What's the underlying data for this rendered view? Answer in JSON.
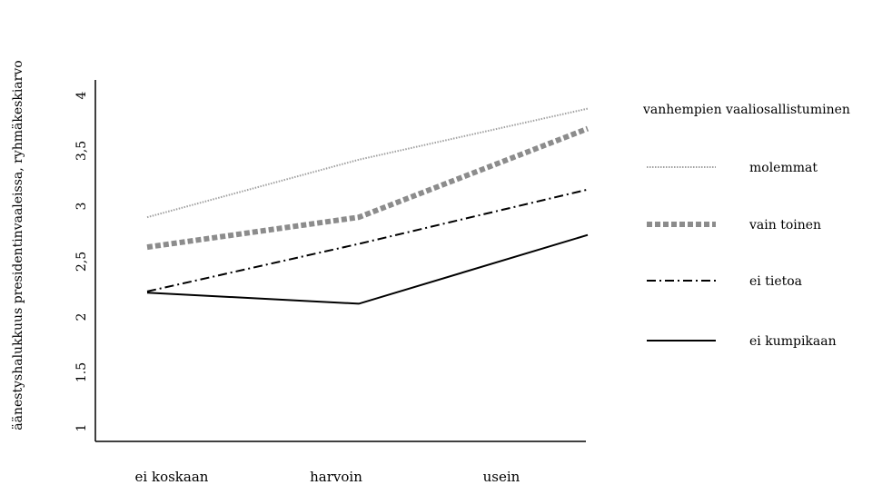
{
  "chart_data": {
    "type": "line",
    "categories": [
      "ei koskaan",
      "harvoin",
      "usein"
    ],
    "ylabel": "äänestyshalukkuus presidentinvaaleissa, ryhmäkeskiarvo",
    "yticks": [
      "1",
      "1.5",
      "2",
      "2,5",
      "3",
      "3,5",
      "4"
    ],
    "ylim": [
      1,
      4
    ],
    "legend_title": "vanhempien vaaliosallistuminen",
    "legend_position": "right",
    "series": [
      {
        "name": "molemmat",
        "values": [
          2.9,
          3.42,
          3.88
        ],
        "style": "dotted",
        "color": "#a0a0a0"
      },
      {
        "name": "vain toinen",
        "values": [
          2.63,
          2.9,
          3.7
        ],
        "style": "thick-dashed",
        "color": "#8c8c8c"
      },
      {
        "name": "ei tietoa",
        "values": [
          2.23,
          2.66,
          3.15
        ],
        "style": "dash-dot",
        "color": "#000000"
      },
      {
        "name": "ei kumpikaan",
        "values": [
          2.22,
          2.12,
          2.74
        ],
        "style": "solid",
        "color": "#000000"
      }
    ]
  }
}
